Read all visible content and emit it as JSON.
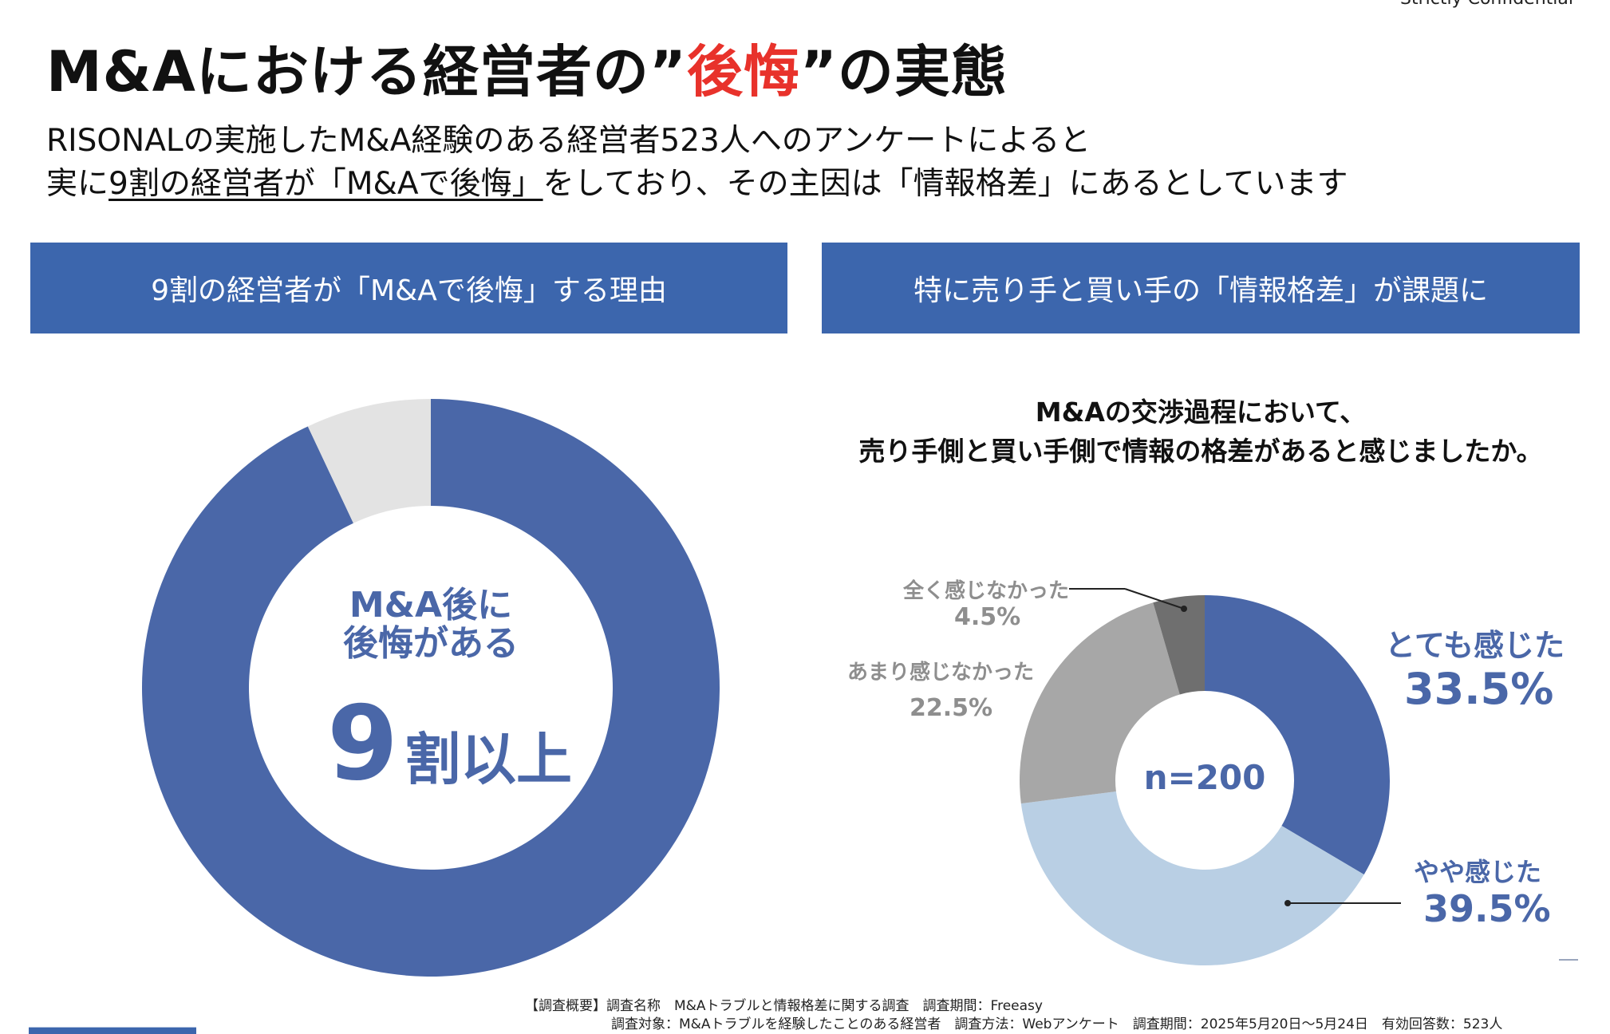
{
  "header": {
    "confidential": "Strictly Confidential",
    "title_before": "M&Aにおける経営者の”",
    "title_accent": "後悔",
    "title_after": "”の実態",
    "accent_color": "#e8322b"
  },
  "summary": {
    "line1": "RISONALの実施したM&A経験のある経営者523人へのアンケートによると",
    "line2_prefix": "実に",
    "line2_underlined": "9割の経営者が「M&Aで後悔」",
    "line2_suffix": "をしており、その主因は「情報格差」にあるとしています"
  },
  "left_panel": {
    "header": "9割の経営者が「M&Aで後悔」する理由",
    "donut_text_line1": "M&A後に",
    "donut_text_line2": "後悔がある",
    "big_number": "9",
    "big_number_rest": "割以上"
  },
  "right_panel": {
    "header": "特に売り手と買い手の「情報格差」が課題に",
    "question_line1": "M&Aの交渉過程において、",
    "question_line2": "売り手側と買い手側で情報の格差があると感じましたか。",
    "n_label": "n=200"
  },
  "chart_data": [
    {
      "type": "pie",
      "title": "",
      "donut": true,
      "categories": [
        "M&A後に後悔がある",
        ""
      ],
      "values": [
        93,
        7
      ],
      "colors": [
        "#4a67a8",
        "#e3e3e3"
      ]
    },
    {
      "type": "pie",
      "title": "M&Aの交渉過程において、売り手側と買い手側で情報の格差があると感じましたか。",
      "donut": true,
      "categories": [
        "とても感じた",
        "やや感じた",
        "あまり感じなかった",
        "全く感じなかった"
      ],
      "values": [
        33.5,
        39.5,
        22.5,
        4.5
      ],
      "value_labels": [
        "33.5%",
        "39.5%",
        "22.5%",
        "4.5%"
      ],
      "colors": [
        "#4a67a8",
        "#b9cfe4",
        "#a7a7a7",
        "#6f6f6f"
      ],
      "n": 200
    }
  ],
  "footer": {
    "line1": "【調査概要】調査名称　M&Aトラブルと情報格差に関する調査　調査期間：Freeasy",
    "line2": "調査対象：M&Aトラブルを経験したことのある経営者　調査方法：Webアンケート　調査期間：2025年5月20日〜5月24日　有効回答数：523人"
  }
}
